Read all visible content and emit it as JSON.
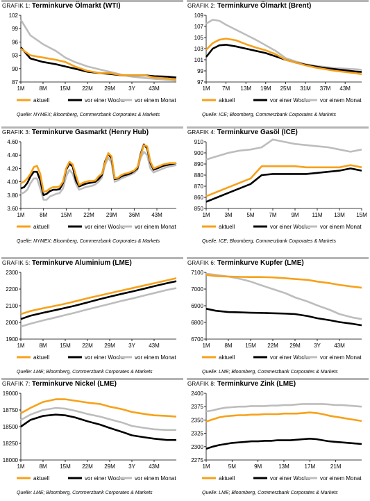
{
  "panels": [
    {
      "prefix": "GRAFIK 1: ",
      "title": "Terminkurve Ölmarkt (WTI)",
      "source": "Quelle: NYMEX; Bloomberg, Commerzbank Corporates & Markets"
    },
    {
      "prefix": "GRAFIK 2: ",
      "title": "Terminkurve Ölmarkt (Brent)",
      "source": "Quelle: ICE; Bloomberg, Commerzbank Corporates & Markets"
    },
    {
      "prefix": "GRAFIK 3: ",
      "title": "Terminkurve Gasmarkt (Henry Hub)",
      "source": "Quelle: NYMEX; Bloomberg, Commerzbank Corporates & Markets"
    },
    {
      "prefix": "GRAFIK 4: ",
      "title": "Terminkurve Gasöl (ICE)",
      "source": "Quelle: ICE; Bloomberg, Commerzbank Corporates & Markets"
    },
    {
      "prefix": "GRAFIK 5: ",
      "title": "Terminkurve Aluminium (LME)",
      "source": "Quelle: LME; Bloomberg, Commerzbank Corporates & Markets"
    },
    {
      "prefix": "GRAFIK 6: ",
      "title": "Terminkurve Kupfer (LME)",
      "source": "Quelle: LME; Bloomberg, Commerzbank Corporates & Markets"
    },
    {
      "prefix": "GRAFIK 7: ",
      "title": "Terminkurve Nickel (LME)",
      "source": "Quelle: LME; Bloomberg, Commerzbank Corporates & Markets"
    },
    {
      "prefix": "GRAFIK 8: ",
      "title": "Terminkurve Zink (LME)",
      "source": "Quelle: LME; Bloomberg, Commerzbank Corporates & Markets"
    }
  ],
  "colors": {
    "aktuell": "#f7a11a",
    "vor_einer_woche": "#000000",
    "vor_einem_monat": "#bdbdbd",
    "rule": "#b4b4b4"
  },
  "chart_data": [
    {
      "type": "line",
      "title": "Terminkurve Ölmarkt (WTI)",
      "x_ticks": [
        "1M",
        "8M",
        "15M",
        "22M",
        "29M",
        "3Y",
        "43M"
      ],
      "ylim": [
        87,
        102
      ],
      "y_ticks": [
        87,
        90,
        93,
        96,
        99,
        102
      ],
      "x": [
        1,
        4,
        8,
        12,
        15,
        18,
        22,
        26,
        29,
        33,
        36,
        40,
        43,
        47,
        50
      ],
      "series": [
        {
          "name": "aktuell",
          "values": [
            94.5,
            93.0,
            92.5,
            92.0,
            91.5,
            90.5,
            89.5,
            89.0,
            89.0,
            88.5,
            88.5,
            88.5,
            88.0,
            87.8,
            87.5
          ]
        },
        {
          "name": "vor einer Woche",
          "values": [
            94.8,
            92.3,
            91.5,
            91.0,
            90.5,
            90.0,
            89.3,
            89.0,
            88.8,
            88.5,
            88.5,
            88.5,
            88.3,
            88.2,
            88.0
          ]
        },
        {
          "name": "vor einem Monat",
          "values": [
            101.0,
            97.5,
            95.5,
            94.0,
            92.5,
            91.5,
            90.5,
            89.8,
            89.3,
            88.6,
            88.2,
            87.9,
            87.7,
            87.5,
            87.3
          ]
        }
      ]
    },
    {
      "type": "line",
      "title": "Terminkurve Ölmarkt (Brent)",
      "x_ticks": [
        "1M",
        "7M",
        "13M",
        "19M",
        "25M",
        "31M",
        "37M",
        "43M"
      ],
      "ylim": [
        97,
        109
      ],
      "y_ticks": [
        97,
        99,
        101,
        103,
        105,
        107,
        109
      ],
      "x": [
        1,
        3,
        5,
        7,
        10,
        13,
        16,
        19,
        22,
        25,
        28,
        31,
        34,
        37,
        40,
        43,
        46,
        48
      ],
      "series": [
        {
          "name": "aktuell",
          "values": [
            102.8,
            104.0,
            104.6,
            104.8,
            104.5,
            103.8,
            103.2,
            102.7,
            102.0,
            101.0,
            100.5,
            100.0,
            99.6,
            99.3,
            99.0,
            98.8,
            98.6,
            98.4
          ]
        },
        {
          "name": "vor einer Woche",
          "values": [
            101.5,
            103.0,
            103.6,
            103.7,
            103.4,
            103.0,
            102.6,
            102.2,
            101.6,
            101.0,
            100.5,
            100.1,
            99.8,
            99.5,
            99.3,
            99.1,
            98.9,
            98.8
          ]
        },
        {
          "name": "vor einem Monat",
          "values": [
            107.5,
            108.2,
            108.0,
            107.3,
            106.4,
            105.5,
            104.6,
            103.6,
            102.6,
            101.3,
            100.7,
            100.2,
            99.9,
            99.7,
            99.5,
            99.4,
            99.3,
            99.2
          ]
        }
      ]
    },
    {
      "type": "line",
      "title": "Terminkurve Gasmarkt (Henry Hub)",
      "x_ticks": [
        "1M",
        "8M",
        "15M",
        "22M",
        "29M",
        "36M",
        "43M"
      ],
      "ylim": [
        3.6,
        4.6
      ],
      "y_ticks": [
        3.6,
        3.8,
        4.0,
        4.2,
        4.4,
        4.6
      ],
      "x": [
        1,
        2,
        3,
        4,
        5,
        6,
        7,
        8,
        9,
        10,
        11,
        12,
        13,
        14,
        15,
        16,
        17,
        18,
        19,
        20,
        21,
        22,
        23,
        24,
        25,
        26,
        27,
        28,
        29,
        30,
        31,
        32,
        33,
        34,
        35,
        36,
        37,
        38,
        39,
        40,
        41,
        42,
        43,
        44,
        45,
        46,
        47,
        48,
        49
      ],
      "series": [
        {
          "name": "aktuell",
          "values": [
            3.98,
            4.0,
            4.05,
            4.12,
            4.22,
            4.24,
            4.12,
            3.85,
            3.86,
            3.9,
            3.92,
            3.92,
            3.93,
            4.0,
            4.2,
            4.3,
            4.26,
            4.1,
            3.95,
            3.98,
            4.0,
            4.01,
            4.01,
            4.02,
            4.08,
            4.12,
            4.28,
            4.43,
            4.38,
            4.05,
            4.06,
            4.1,
            4.12,
            4.13,
            4.15,
            4.17,
            4.22,
            4.4,
            4.55,
            4.53,
            4.3,
            4.2,
            4.22,
            4.24,
            4.26,
            4.27,
            4.28,
            4.28,
            4.28
          ]
        },
        {
          "name": "vor einer Woche",
          "values": [
            3.9,
            3.92,
            3.98,
            4.08,
            4.15,
            4.15,
            4.02,
            3.8,
            3.82,
            3.86,
            3.88,
            3.88,
            3.89,
            3.98,
            4.18,
            4.27,
            4.23,
            4.02,
            3.93,
            3.95,
            3.97,
            3.98,
            3.99,
            4.0,
            4.04,
            4.1,
            4.3,
            4.42,
            4.35,
            4.04,
            4.05,
            4.08,
            4.1,
            4.11,
            4.13,
            4.16,
            4.2,
            4.42,
            4.56,
            4.5,
            4.28,
            4.18,
            4.2,
            4.22,
            4.24,
            4.25,
            4.26,
            4.27,
            4.28
          ]
        },
        {
          "name": "vor einem Monat",
          "values": [
            3.82,
            3.84,
            3.88,
            3.98,
            4.05,
            4.05,
            3.9,
            3.73,
            3.73,
            3.78,
            3.8,
            3.82,
            3.83,
            3.9,
            4.08,
            4.18,
            4.12,
            3.97,
            3.88,
            3.9,
            3.92,
            3.93,
            3.94,
            3.96,
            4.0,
            4.06,
            4.25,
            4.36,
            4.28,
            4.0,
            4.02,
            4.05,
            4.07,
            4.09,
            4.11,
            4.13,
            4.18,
            4.36,
            4.45,
            4.4,
            4.2,
            4.14,
            4.16,
            4.18,
            4.2,
            4.22,
            4.23,
            4.24,
            4.25
          ]
        }
      ]
    },
    {
      "type": "line",
      "title": "Terminkurve Gasöl (ICE)",
      "x_ticks": [
        "1M",
        "3M",
        "5M",
        "7M",
        "9M",
        "11M",
        "13M",
        "15M"
      ],
      "ylim": [
        850,
        910
      ],
      "y_ticks": [
        850,
        860,
        870,
        880,
        890,
        900,
        910
      ],
      "x": [
        1,
        2,
        3,
        4,
        5,
        6,
        7,
        8,
        9,
        10,
        11,
        12,
        13,
        14,
        15
      ],
      "series": [
        {
          "name": "aktuell",
          "values": [
            861,
            865,
            869,
            873,
            877,
            888,
            888,
            888,
            888,
            887,
            887,
            887,
            887,
            889,
            887
          ]
        },
        {
          "name": "vor einer Woche",
          "values": [
            856,
            860,
            864,
            868,
            872,
            880,
            881,
            881,
            881,
            881,
            882,
            883,
            884,
            886,
            884
          ]
        },
        {
          "name": "vor einem Monat",
          "values": [
            894,
            897,
            900,
            902,
            903,
            905,
            912,
            910,
            908,
            907,
            906,
            905,
            903,
            901,
            903
          ]
        }
      ]
    },
    {
      "type": "line",
      "title": "Terminkurve Aluminium (LME)",
      "x_ticks": [
        "1M",
        "8M",
        "15M",
        "22M",
        "29M",
        "3Y",
        "43M"
      ],
      "ylim": [
        1900,
        2300
      ],
      "y_ticks": [
        1900,
        2000,
        2100,
        2200,
        2300
      ],
      "x": [
        1,
        4,
        8,
        12,
        15,
        18,
        22,
        26,
        29,
        33,
        36,
        40,
        43,
        47,
        50
      ],
      "series": [
        {
          "name": "aktuell",
          "values": [
            2050,
            2068,
            2085,
            2100,
            2112,
            2126,
            2145,
            2162,
            2175,
            2192,
            2205,
            2222,
            2235,
            2252,
            2265
          ]
        },
        {
          "name": "vor einer Woche",
          "values": [
            2020,
            2040,
            2058,
            2074,
            2087,
            2100,
            2120,
            2140,
            2154,
            2172,
            2185,
            2203,
            2217,
            2235,
            2247
          ]
        },
        {
          "name": "vor einem Monat",
          "values": [
            1975,
            1992,
            2012,
            2030,
            2044,
            2058,
            2078,
            2097,
            2111,
            2130,
            2143,
            2162,
            2176,
            2194,
            2206
          ]
        }
      ]
    },
    {
      "type": "line",
      "title": "Terminkurve Kupfer (LME)",
      "x_ticks": [
        "1M",
        "8M",
        "15M",
        "22M",
        "29M",
        "3Y",
        "43M"
      ],
      "ylim": [
        6700,
        7100
      ],
      "y_ticks": [
        6700,
        6800,
        6900,
        7000,
        7100
      ],
      "x": [
        1,
        4,
        8,
        12,
        15,
        18,
        22,
        26,
        29,
        33,
        36,
        40,
        43,
        47,
        50
      ],
      "series": [
        {
          "name": "aktuell",
          "values": [
            7085,
            7078,
            7075,
            7073,
            7072,
            7072,
            7070,
            7065,
            7060,
            7055,
            7045,
            7035,
            7025,
            7015,
            7008
          ]
        },
        {
          "name": "vor einer Woche",
          "values": [
            6882,
            6870,
            6862,
            6860,
            6858,
            6857,
            6855,
            6853,
            6850,
            6838,
            6825,
            6813,
            6802,
            6792,
            6783
          ]
        },
        {
          "name": "vor einem Monat",
          "values": [
            7092,
            7085,
            7075,
            7060,
            7045,
            7025,
            7000,
            6975,
            6950,
            6925,
            6902,
            6875,
            6850,
            6830,
            6820
          ]
        }
      ]
    },
    {
      "type": "line",
      "title": "Terminkurve Nickel (LME)",
      "x_ticks": [
        "1M",
        "8M",
        "15M",
        "22M",
        "29M",
        "3Y",
        "43M"
      ],
      "ylim": [
        18000,
        19000
      ],
      "y_ticks": [
        18000,
        18250,
        18500,
        18750,
        19000
      ],
      "x": [
        1,
        4,
        8,
        12,
        15,
        18,
        22,
        26,
        29,
        33,
        36,
        40,
        43,
        47,
        50
      ],
      "series": [
        {
          "name": "aktuell",
          "values": [
            18700,
            18780,
            18870,
            18910,
            18910,
            18890,
            18860,
            18840,
            18800,
            18760,
            18720,
            18690,
            18670,
            18660,
            18650
          ]
        },
        {
          "name": "vor einer Woche",
          "values": [
            18500,
            18600,
            18660,
            18680,
            18670,
            18640,
            18580,
            18530,
            18480,
            18420,
            18370,
            18340,
            18320,
            18300,
            18300
          ]
        },
        {
          "name": "vor einem Monat",
          "values": [
            18600,
            18680,
            18750,
            18780,
            18770,
            18740,
            18690,
            18650,
            18610,
            18560,
            18510,
            18480,
            18460,
            18450,
            18450
          ]
        }
      ]
    },
    {
      "type": "line",
      "title": "Terminkurve Zink (LME)",
      "x_ticks": [
        "1M",
        "5M",
        "9M",
        "13M",
        "17M",
        "21M"
      ],
      "ylim": [
        2275,
        2400
      ],
      "y_ticks": [
        2275,
        2300,
        2325,
        2350,
        2375,
        2400
      ],
      "x": [
        1,
        2,
        3,
        4,
        5,
        6,
        7,
        8,
        9,
        10,
        11,
        12,
        13,
        14,
        15,
        16,
        17,
        18,
        19,
        20,
        21,
        22,
        23,
        24,
        25
      ],
      "series": [
        {
          "name": "aktuell",
          "values": [
            2347,
            2351,
            2355,
            2357,
            2358,
            2359,
            2359,
            2360,
            2360,
            2361,
            2361,
            2361,
            2362,
            2362,
            2362,
            2363,
            2364,
            2363,
            2361,
            2358,
            2356,
            2354,
            2352,
            2350,
            2348
          ]
        },
        {
          "name": "vor einer Woche",
          "values": [
            2296,
            2300,
            2303,
            2305,
            2307,
            2308,
            2309,
            2310,
            2310,
            2311,
            2311,
            2312,
            2312,
            2312,
            2313,
            2314,
            2315,
            2314,
            2312,
            2310,
            2309,
            2308,
            2307,
            2306,
            2305
          ]
        },
        {
          "name": "vor einem Monat",
          "values": [
            2366,
            2368,
            2371,
            2373,
            2374,
            2375,
            2375,
            2376,
            2376,
            2376,
            2377,
            2377,
            2378,
            2378,
            2379,
            2380,
            2380,
            2380,
            2380,
            2379,
            2378,
            2378,
            2377,
            2376,
            2375
          ]
        }
      ]
    }
  ]
}
